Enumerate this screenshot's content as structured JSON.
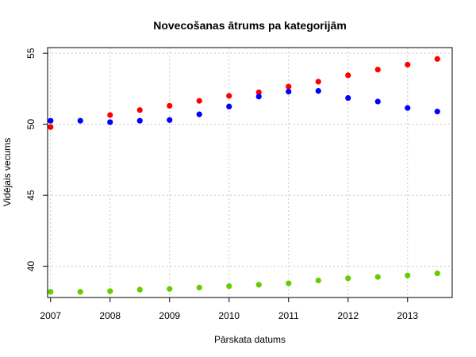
{
  "chart_data": {
    "type": "scatter",
    "title": "Novecošanas ātrums pa kategorijām",
    "xlabel": "Pārskata datums",
    "ylabel": "Vidējais vecums",
    "x": [
      2007.0,
      2007.5,
      2008.0,
      2008.5,
      2009.0,
      2009.5,
      2010.0,
      2010.5,
      2011.0,
      2011.5,
      2012.0,
      2012.5,
      2013.0,
      2013.5
    ],
    "xlim": [
      2006.95,
      2013.75
    ],
    "ylim": [
      37.8,
      55.4
    ],
    "x_ticks": [
      2007,
      2008,
      2009,
      2010,
      2011,
      2012,
      2013
    ],
    "y_ticks": [
      40,
      45,
      50,
      55
    ],
    "grid": true,
    "series": [
      {
        "color": "#ff0000",
        "values": [
          49.8,
          null,
          50.65,
          51.0,
          51.3,
          51.65,
          52.0,
          52.25,
          52.65,
          53.0,
          53.45,
          53.85,
          54.2,
          54.6
        ]
      },
      {
        "color": "#0000ff",
        "values": [
          50.25,
          50.25,
          50.15,
          50.25,
          50.3,
          50.7,
          51.25,
          51.95,
          52.3,
          52.35,
          51.85,
          51.6,
          51.15,
          50.9
        ]
      },
      {
        "color": "#66cc00",
        "values": [
          38.2,
          38.2,
          38.25,
          38.35,
          38.4,
          38.5,
          38.6,
          38.7,
          38.8,
          39.0,
          39.15,
          39.25,
          39.35,
          39.5
        ]
      }
    ]
  }
}
